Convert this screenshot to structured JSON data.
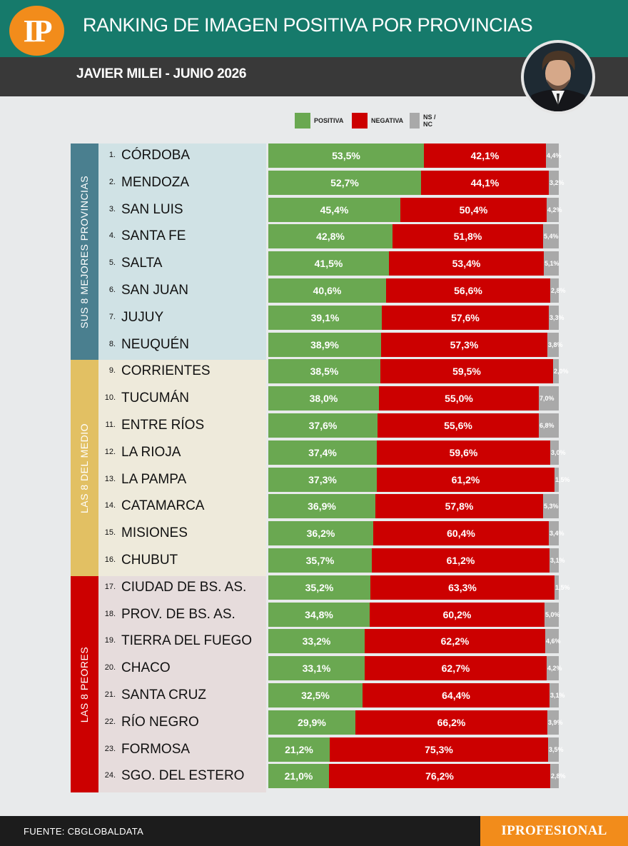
{
  "header": {
    "logo": "IP",
    "title": "RANKING DE IMAGEN POSITIVA POR PROVINCIAS",
    "subtitle": "JAVIER MILEI - JUNIO 2026"
  },
  "legend": {
    "positiva": "POSITIVA",
    "negativa": "NEGATIVA",
    "nsnc": "NS / NC"
  },
  "colors": {
    "positiva": "#6aa851",
    "negativa": "#cc0000",
    "nsnc": "#a9a9a9",
    "header_bg": "#167a6b",
    "subheader_bg": "#393939",
    "brand": "#f28c1b"
  },
  "groups": [
    {
      "label": "SUS 8 MEJORES PROVINCIAS",
      "tab_color": "#4a7f8f",
      "body_color": "#d0e2e5"
    },
    {
      "label": "LAS 8 DEL MEDIO",
      "tab_color": "#e2c063",
      "body_color": "#eeeadb"
    },
    {
      "label": "LAS 8 PEORES",
      "tab_color": "#cc0000",
      "body_color": "#e6dcdc"
    }
  ],
  "chart_data": {
    "type": "bar",
    "stacked": true,
    "orientation": "horizontal",
    "title": "RANKING DE IMAGEN POSITIVA POR PROVINCIAS",
    "subtitle": "JAVIER MILEI - JUNIO 2026",
    "legend_position": "top",
    "categories": [
      "CÓRDOBA",
      "MENDOZA",
      "SAN LUIS",
      "SANTA FE",
      "SALTA",
      "SAN JUAN",
      "JUJUY",
      "NEUQUÉN",
      "CORRIENTES",
      "TUCUMÁN",
      "ENTRE RÍOS",
      "LA RIOJA",
      "LA PAMPA",
      "CATAMARCA",
      "MISIONES",
      "CHUBUT",
      "CIUDAD DE BS. AS.",
      "PROV. DE BS. AS.",
      "TIERRA DEL FUEGO",
      "CHACO",
      "SANTA CRUZ",
      "RÍO NEGRO",
      "FORMOSA",
      "SGO. DEL ESTERO"
    ],
    "ranks": [
      "1.",
      "2.",
      "3.",
      "4.",
      "5.",
      "6.",
      "7.",
      "8.",
      "9.",
      "10.",
      "11.",
      "12.",
      "13.",
      "14.",
      "15.",
      "16.",
      "17.",
      "18.",
      "19.",
      "20.",
      "21.",
      "22.",
      "23.",
      "24."
    ],
    "series": [
      {
        "name": "POSITIVA",
        "values": [
          53.5,
          52.7,
          45.4,
          42.8,
          41.5,
          40.6,
          39.1,
          38.9,
          38.5,
          38.0,
          37.6,
          37.4,
          37.3,
          36.9,
          36.2,
          35.7,
          35.2,
          34.8,
          33.2,
          33.1,
          32.5,
          29.9,
          21.2,
          21.0
        ],
        "labels": [
          "53,5%",
          "52,7%",
          "45,4%",
          "42,8%",
          "41,5%",
          "40,6%",
          "39,1%",
          "38,9%",
          "38,5%",
          "38,0%",
          "37,6%",
          "37,4%",
          "37,3%",
          "36,9%",
          "36,2%",
          "35,7%",
          "35,2%",
          "34,8%",
          "33,2%",
          "33,1%",
          "32,5%",
          "29,9%",
          "21,2%",
          "21,0%"
        ]
      },
      {
        "name": "NEGATIVA",
        "values": [
          42.1,
          44.1,
          50.4,
          51.8,
          53.4,
          56.6,
          57.6,
          57.3,
          59.5,
          55.0,
          55.6,
          59.6,
          61.2,
          57.8,
          60.4,
          61.2,
          63.3,
          60.2,
          62.2,
          62.7,
          64.4,
          66.2,
          75.3,
          76.2
        ],
        "labels": [
          "42,1%",
          "44,1%",
          "50,4%",
          "51,8%",
          "53,4%",
          "56,6%",
          "57,6%",
          "57,3%",
          "59,5%",
          "55,0%",
          "55,6%",
          "59,6%",
          "61,2%",
          "57,8%",
          "60,4%",
          "61,2%",
          "63,3%",
          "60,2%",
          "62,2%",
          "62,7%",
          "64,4%",
          "66,2%",
          "75,3%",
          "76,2%"
        ]
      },
      {
        "name": "NS / NC",
        "values": [
          4.4,
          3.2,
          4.2,
          5.4,
          5.1,
          2.8,
          3.3,
          3.8,
          2.0,
          7.0,
          6.8,
          3.0,
          1.5,
          5.3,
          3.4,
          3.1,
          1.5,
          5.0,
          4.6,
          4.2,
          3.1,
          3.9,
          3.5,
          2.8
        ],
        "labels": [
          "4,4%",
          "3,2%",
          "4,2%",
          "5,4%",
          "5,1%",
          "2,8%",
          "3,3%",
          "3,8%",
          "2,0%",
          "7,0%",
          "6,8%",
          "3,0%",
          "1,5%",
          "5,3%",
          "3,4%",
          "3,1%",
          "1,5%",
          "5,0%",
          "4,6%",
          "4,2%",
          "3,1%",
          "3,9%",
          "3,5%",
          "2,8%"
        ]
      }
    ],
    "xlim": [
      0,
      100
    ]
  },
  "footer": {
    "source": "FUENTE: CBGLOBALDATA",
    "brand": "IPROFESIONAL"
  }
}
